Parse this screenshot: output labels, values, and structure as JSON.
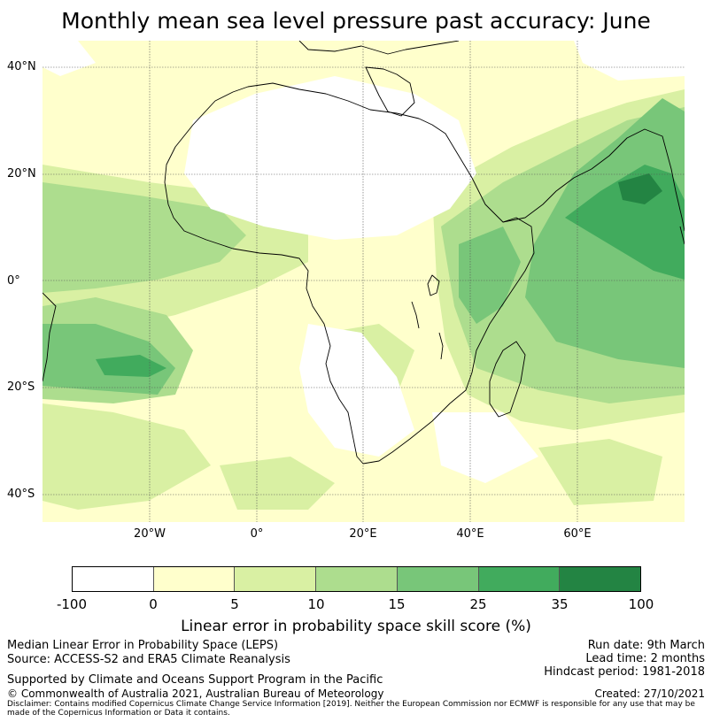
{
  "title": "Monthly mean sea level pressure past accuracy: June",
  "map": {
    "lat_labels": [
      "40°N",
      "20°N",
      "0°",
      "20°S",
      "40°S"
    ],
    "lon_labels": [
      "20°W",
      "0°",
      "20°E",
      "40°E",
      "60°E"
    ],
    "extent": {
      "lon_min": -40,
      "lon_max": 80,
      "lat_min": -45,
      "lat_max": 45
    },
    "skill_regions": [
      {
        "name": "north-africa-sahara",
        "category": "-100 to 0"
      },
      {
        "name": "southern-africa-interior",
        "category": "-100 to 0"
      },
      {
        "name": "arabian-sea-india",
        "category": "25 to 35"
      },
      {
        "name": "northern-indian-ocean",
        "category": "15 to 25"
      },
      {
        "name": "central-south-atlantic",
        "category": "15 to 25"
      },
      {
        "name": "tropical-atlantic",
        "category": "10 to 15"
      },
      {
        "name": "southern-ocean-midlatitudes",
        "category": "0 to 5"
      }
    ]
  },
  "colorbar": {
    "ticks": [
      "-100",
      "0",
      "5",
      "10",
      "15",
      "25",
      "35",
      "100"
    ],
    "colors": [
      "#ffffff",
      "#ffffcc",
      "#d9f0a3",
      "#addd8e",
      "#78c679",
      "#41ab5d",
      "#238443"
    ],
    "label": "Linear error in probability space skill score (%)"
  },
  "footer": {
    "method": "Median Linear Error in Probability Space (LEPS)",
    "source": "Source: ACCESS-S2 and ERA5 Climate Reanalysis",
    "support": "Supported by Climate and Oceans Support Program in the Pacific",
    "copyright": "© Commonwealth of Australia 2021, Australian Bureau of Meteorology",
    "disclaimer": "Disclaimer: Contains modified Copernicus Climate Change Service Information [2019]. Neither the European Commission nor ECMWF is responsible for any use that may be made of the Copernicus Information or Data it contains.",
    "run_date": "Run date: 9th March",
    "lead_time": "Lead time: 2 months",
    "hindcast": "Hindcast period: 1981-2018",
    "created": "Created: 27/10/2021"
  }
}
